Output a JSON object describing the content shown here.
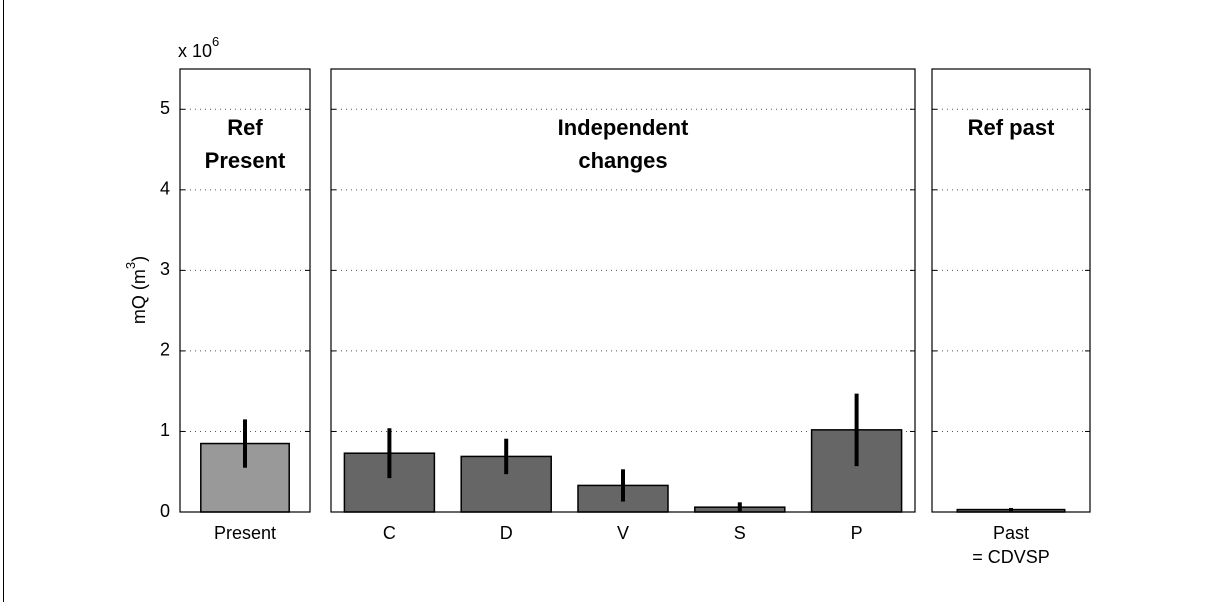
{
  "chart_data": [
    {
      "type": "bar",
      "title": "Ref\nPresent",
      "categories": [
        "Present"
      ],
      "values": [
        0.85
      ],
      "errors": [
        0.3
      ],
      "color": "#999999",
      "ylim": [
        0,
        5.5
      ],
      "yticks": [
        0,
        1,
        2,
        3,
        4,
        5
      ],
      "grid": true,
      "ylabel": [
        "mQ (m",
        "3",
        ")"
      ],
      "multiplier": [
        "x 10",
        "6"
      ]
    },
    {
      "type": "bar",
      "title": "Independent\nchanges",
      "categories": [
        "C",
        "D",
        "V",
        "S",
        "P"
      ],
      "values": [
        0.73,
        0.69,
        0.33,
        0.06,
        1.02
      ],
      "errors": [
        0.31,
        0.22,
        0.2,
        0.06,
        0.45
      ],
      "color": "#666666",
      "ylim": [
        0,
        5.5
      ],
      "yticks": [
        0,
        1,
        2,
        3,
        4,
        5
      ],
      "grid": true
    },
    {
      "type": "bar",
      "title": "Ref past",
      "categories": [
        "Past\n= CDVSP"
      ],
      "values": [
        0.03
      ],
      "errors": [
        0.02
      ],
      "color": "#666666",
      "ylim": [
        0,
        5.5
      ],
      "yticks": [
        0,
        1,
        2,
        3,
        4,
        5
      ],
      "grid": true
    }
  ]
}
